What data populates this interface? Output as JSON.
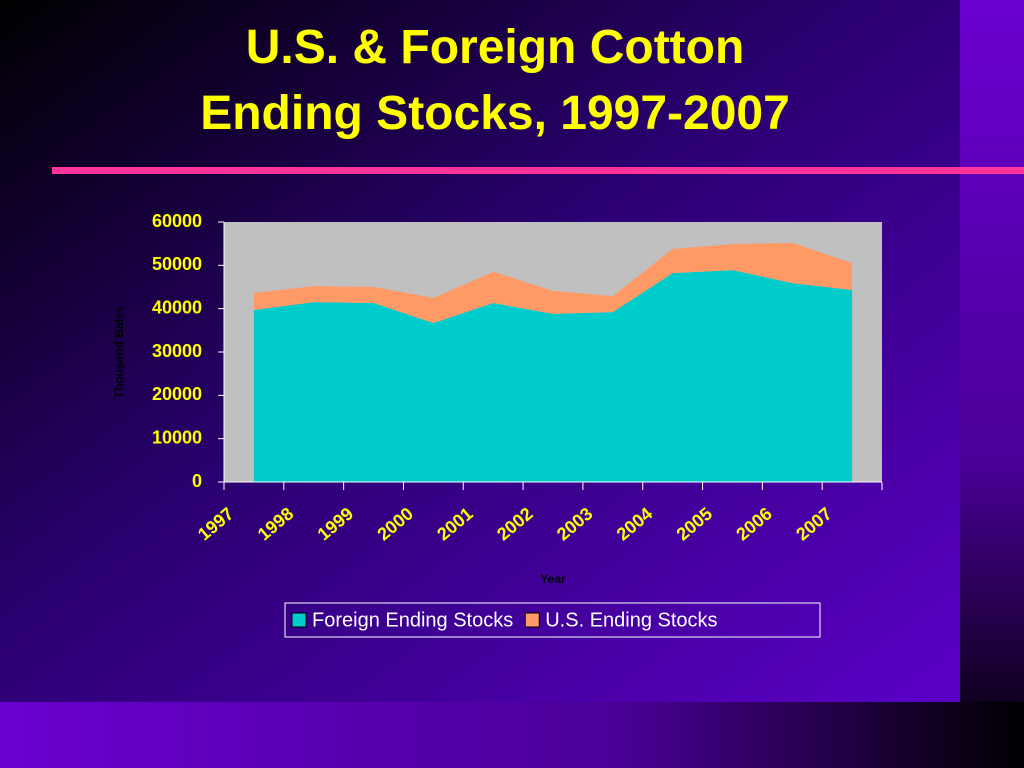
{
  "chart_data": {
    "type": "stacked_area",
    "title": "U.S. & Foreign Cotton Ending Stocks, 1997-2007",
    "x_label": "Year",
    "y_label": "Thousand Bales",
    "categories": [
      "1997",
      "1998",
      "1999",
      "2000",
      "2001",
      "2002",
      "2003",
      "2004",
      "2005",
      "2006",
      "2007"
    ],
    "series": [
      {
        "name": "Foreign Ending Stocks",
        "color": "#00cccc",
        "values": [
          39700,
          41500,
          41300,
          36700,
          41300,
          38800,
          39200,
          48200,
          48900,
          45900,
          44300
        ]
      },
      {
        "name": "U.S. Ending Stocks",
        "color": "#ff9966",
        "values": [
          3900,
          3700,
          3700,
          5800,
          7200,
          5300,
          3700,
          5600,
          6000,
          9300,
          6200
        ]
      }
    ],
    "ylim": [
      0,
      60000
    ],
    "yticks": [
      0,
      10000,
      20000,
      30000,
      40000,
      50000,
      60000
    ],
    "grid": false,
    "legend": "bottom"
  }
}
